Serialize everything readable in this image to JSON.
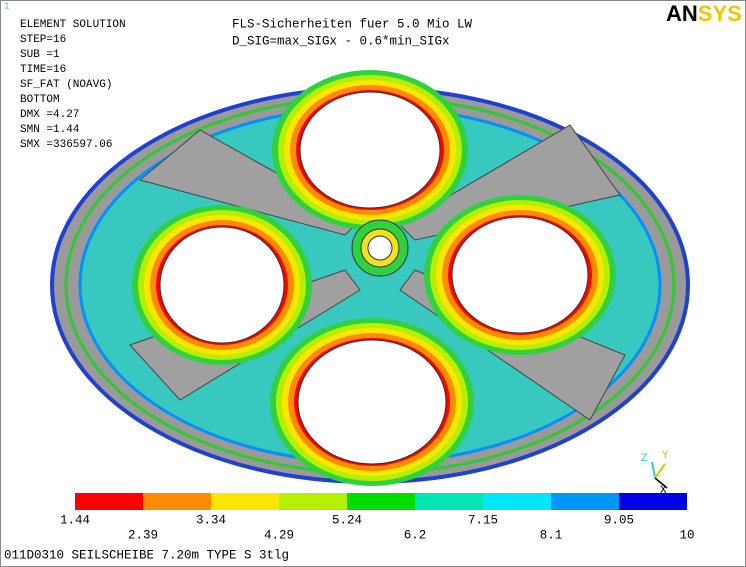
{
  "window": {
    "index": "1"
  },
  "info": {
    "lines": [
      "ELEMENT SOLUTION",
      "STEP=16",
      "SUB =1",
      "TIME=16",
      "SF_FAT    (NOAVG)",
      "BOTTOM",
      "DMX =4.27",
      "SMN =1.44",
      "SMX =336597.06"
    ]
  },
  "title": {
    "lines": [
      "FLS-Sicherheiten fuer 5.0 Mio LW",
      "D_SIG=max_SIGx - 0.6*min_SIGx"
    ]
  },
  "logo": {
    "dark": "AN",
    "light": "SYS"
  },
  "triad": {
    "z": "Z",
    "y": "Y",
    "x": "X"
  },
  "legend": {
    "colors": [
      "#ff0000",
      "#ff8c00",
      "#ffe600",
      "#b4f000",
      "#00dc00",
      "#00e6b4",
      "#00e6ff",
      "#0096ff",
      "#0000e6"
    ],
    "labels": [
      "1.44",
      "2.39",
      "3.34",
      "4.29",
      "5.24",
      "6.2",
      "7.15",
      "8.1",
      "9.05",
      "10"
    ]
  },
  "footer": "011D0310 SEILSCHEIBE 7.20m TYPE S 3tlg"
}
